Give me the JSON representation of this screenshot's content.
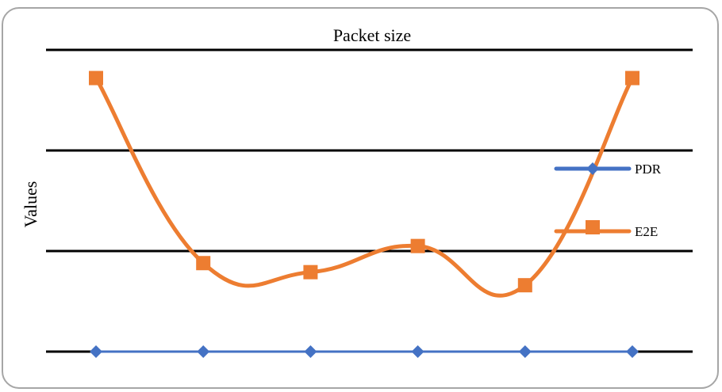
{
  "chart_data": {
    "type": "line",
    "title": "Packet size",
    "xlabel": "",
    "ylabel": "Values",
    "x": [
      1,
      2,
      3,
      4,
      5,
      6
    ],
    "ylim": [
      0,
      3
    ],
    "grid": true,
    "legend_position": "right",
    "series": [
      {
        "name": "PDR",
        "values": [
          0,
          0,
          0,
          0,
          0,
          0
        ],
        "color": "#4472c4",
        "marker": "diamond"
      },
      {
        "name": "E2E",
        "values": [
          2.72,
          0.88,
          0.79,
          1.05,
          0.66,
          2.72
        ],
        "color": "#ed7d31",
        "marker": "square",
        "smooth": true
      }
    ]
  }
}
